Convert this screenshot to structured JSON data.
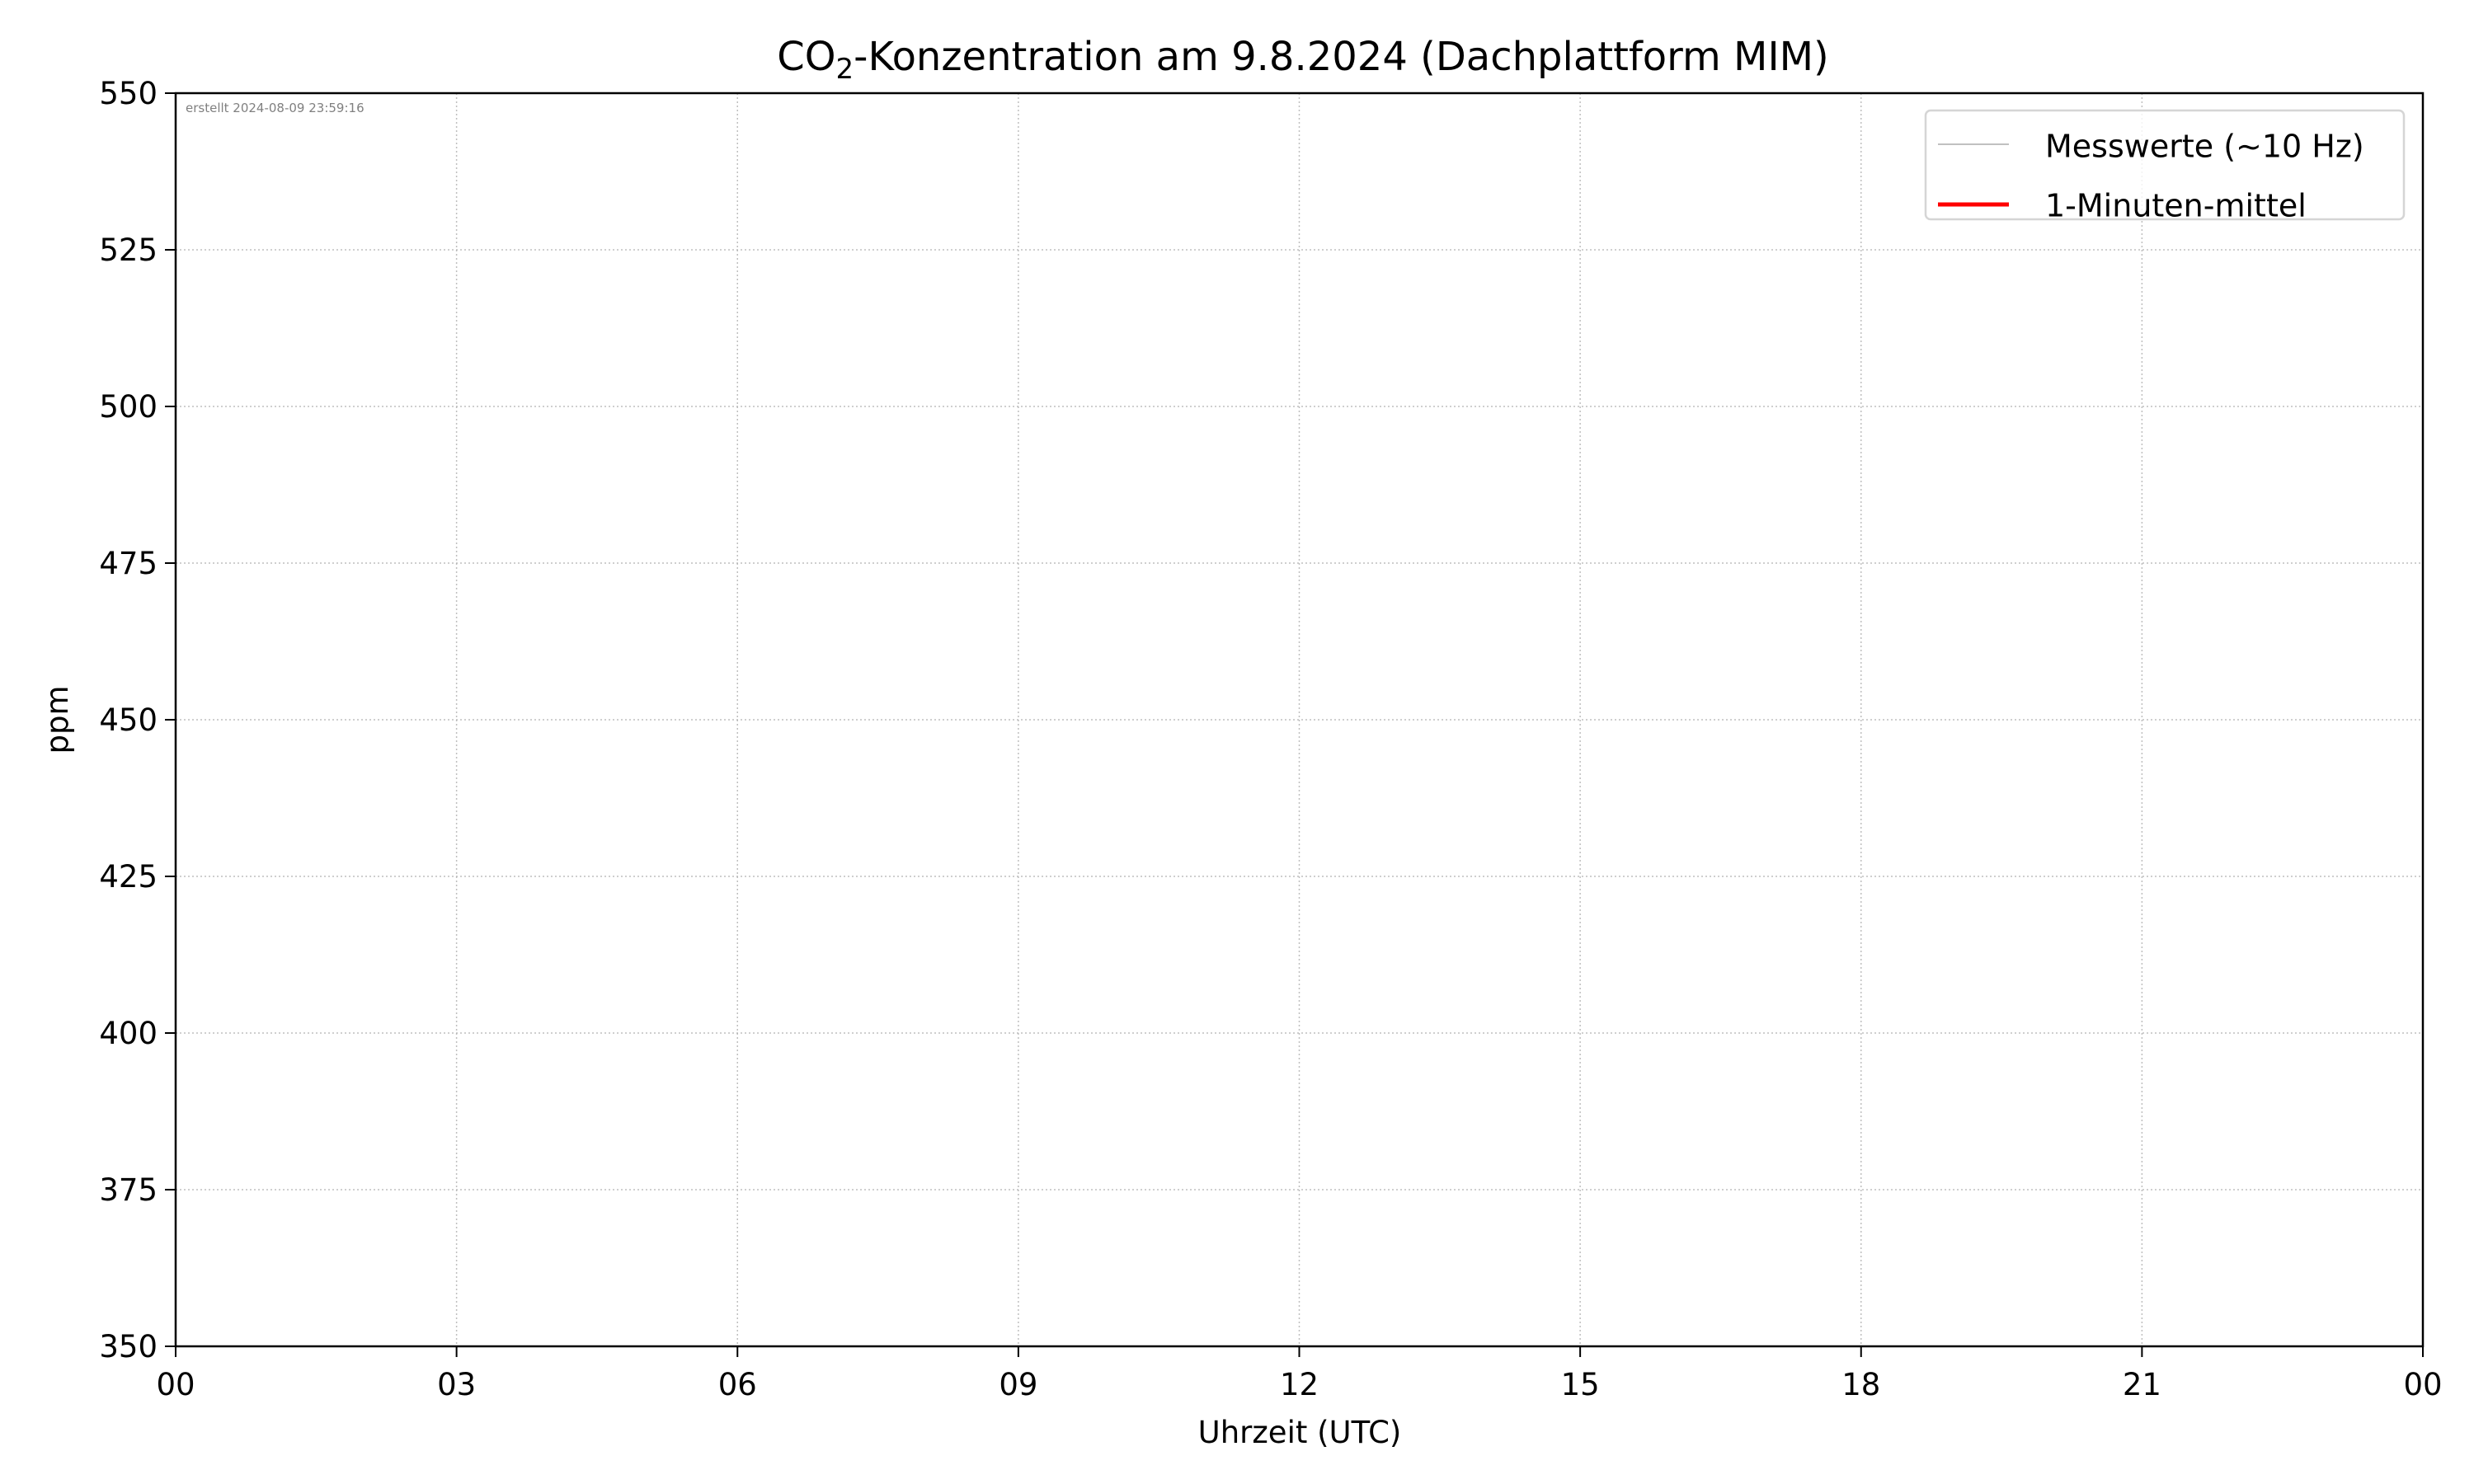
{
  "chart_data": {
    "type": "line",
    "title": {
      "prefix": "CO",
      "subscript": "2",
      "suffix": "-Konzentration am 9.8.2024 (Dachplattform MIM)"
    },
    "xlabel": "Uhrzeit (UTC)",
    "ylabel": "ppm",
    "xlim_hours": [
      0,
      24
    ],
    "ylim": [
      350,
      550
    ],
    "x_ticks": [
      {
        "hour": 0,
        "label": "00"
      },
      {
        "hour": 3,
        "label": "03"
      },
      {
        "hour": 6,
        "label": "06"
      },
      {
        "hour": 9,
        "label": "09"
      },
      {
        "hour": 12,
        "label": "12"
      },
      {
        "hour": 15,
        "label": "15"
      },
      {
        "hour": 18,
        "label": "18"
      },
      {
        "hour": 21,
        "label": "21"
      },
      {
        "hour": 24,
        "label": "00"
      }
    ],
    "y_ticks": [
      350,
      375,
      400,
      425,
      450,
      475,
      500,
      525,
      550
    ],
    "grid": true,
    "legend_position": "top-right",
    "series": [
      {
        "name": "Messwerte (~10 Hz)",
        "color": "#c0c0c0",
        "x": [],
        "y": []
      },
      {
        "name": "1-Minuten-mittel",
        "color": "#ff0000",
        "x": [],
        "y": []
      }
    ],
    "annotation": "erstellt 2024-08-09 23:59:16"
  }
}
